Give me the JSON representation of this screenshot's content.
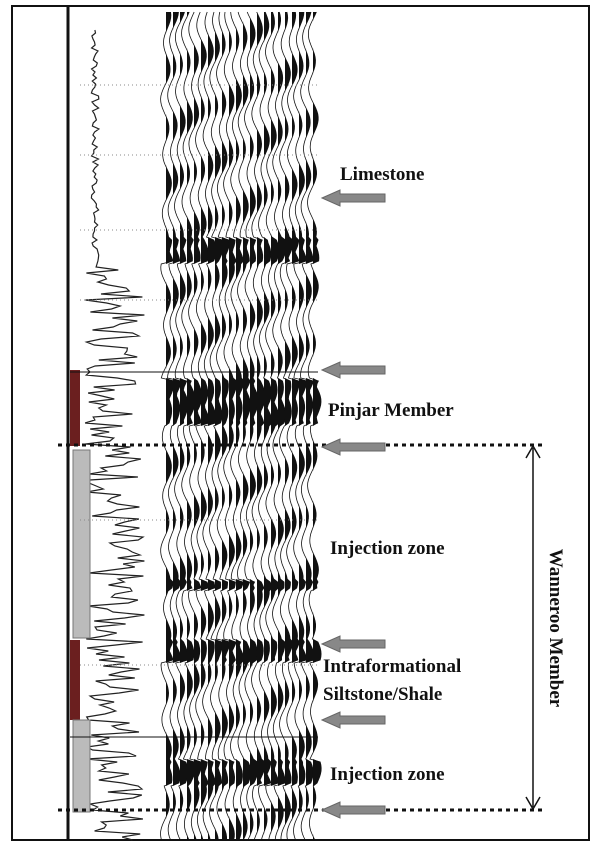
{
  "labels": [
    "Limestone",
    "Pinjar Member",
    "Injection zone",
    "Intraformational",
    "Siltstone/Shale",
    "Injection zone"
  ],
  "bracket_label": "Wanneroo Member"
}
